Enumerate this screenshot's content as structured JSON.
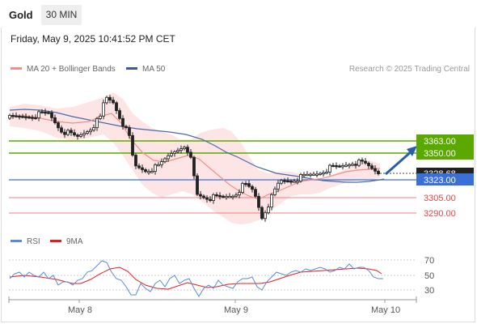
{
  "header": {
    "symbol": "Gold",
    "timeframe": "30 MIN",
    "datetime": "Friday, May 9, 2025 10:41:52 PM CET"
  },
  "legend": {
    "ma20_label": "MA 20 + Bollinger Bands",
    "ma50_label": "MA 50",
    "copyright": "Research © 2025 Trading Central"
  },
  "levels": {
    "r2": "3363.00",
    "r1": "3350.00",
    "last": "3328.68",
    "pivot": "3323.00",
    "s1": "3305.00",
    "s2": "3290.00"
  },
  "rsi_legend": {
    "rsi_label": "RSI",
    "ma9_label": "9MA"
  },
  "rsi_axis": [
    "70",
    "50",
    "30"
  ],
  "x_axis": [
    "May 8",
    "May 9",
    "May 10"
  ],
  "colors": {
    "resistance": "#5aa800",
    "pivot": "#3a6fd8",
    "support": "#f08080",
    "ma20": "#f28e86",
    "ma50": "#4a6aa8",
    "bands": "#fde0e0",
    "rsi": "#5a8ad8",
    "ma9": "#e02020",
    "arrow": "#2a5fa8"
  }
}
